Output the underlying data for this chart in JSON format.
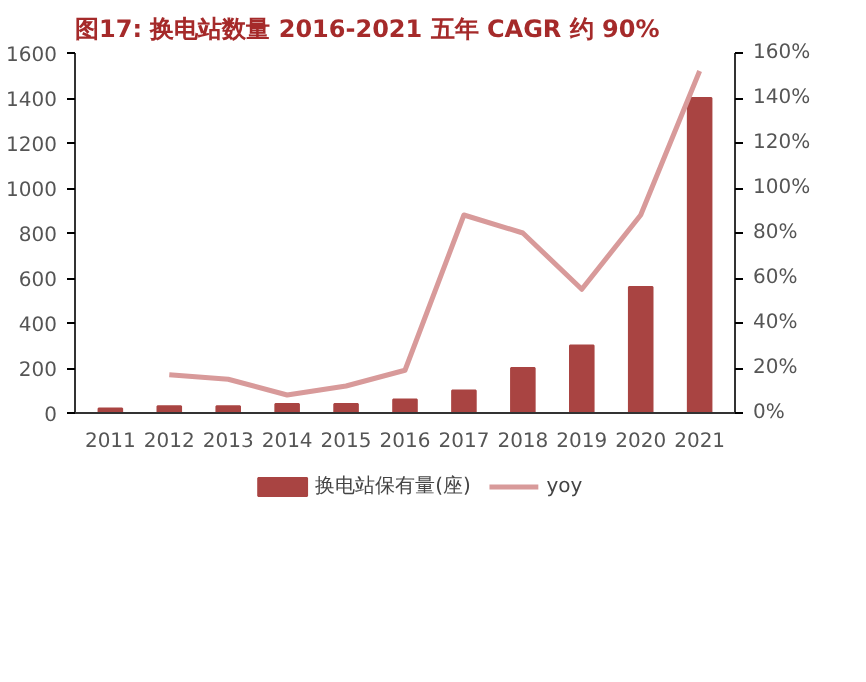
{
  "chart_data": {
    "type": "bar",
    "title": "图17:   换电站数量 2016-2021 五年 CAGR 约 90%",
    "categories": [
      "2011",
      "2012",
      "2013",
      "2014",
      "2015",
      "2016",
      "2017",
      "2018",
      "2019",
      "2020",
      "2021"
    ],
    "series": [
      {
        "name": "换电站保有量(座)",
        "color": "#a94442",
        "values": [
          20,
          30,
          30,
          40,
          40,
          60,
          100,
          200,
          300,
          560,
          1400
        ]
      },
      {
        "name": "yoy",
        "type": "line",
        "axis": "y2",
        "color": "#d89a9a",
        "values": [
          null,
          17,
          15,
          8,
          12,
          19,
          88,
          80,
          55,
          88,
          152
        ]
      }
    ],
    "ylim": [
      0,
      1600
    ],
    "yticks": [
      0,
      200,
      400,
      600,
      800,
      1000,
      1200,
      1400,
      1600
    ],
    "y2lim": [
      0,
      160
    ],
    "y2ticks": [
      {
        "value": 0,
        "label": "0%"
      },
      {
        "value": 20,
        "label": "20%"
      },
      {
        "value": 40,
        "label": "40%"
      },
      {
        "value": 60,
        "label": "60%"
      },
      {
        "value": 80,
        "label": "80%"
      },
      {
        "value": 100,
        "label": "100%"
      },
      {
        "value": 120,
        "label": "120%"
      },
      {
        "value": 140,
        "label": "140%"
      },
      {
        "value": 160,
        "label": "160%"
      }
    ],
    "grid": false,
    "legend": "bottom",
    "marker": "none",
    "line_style": "solid"
  }
}
